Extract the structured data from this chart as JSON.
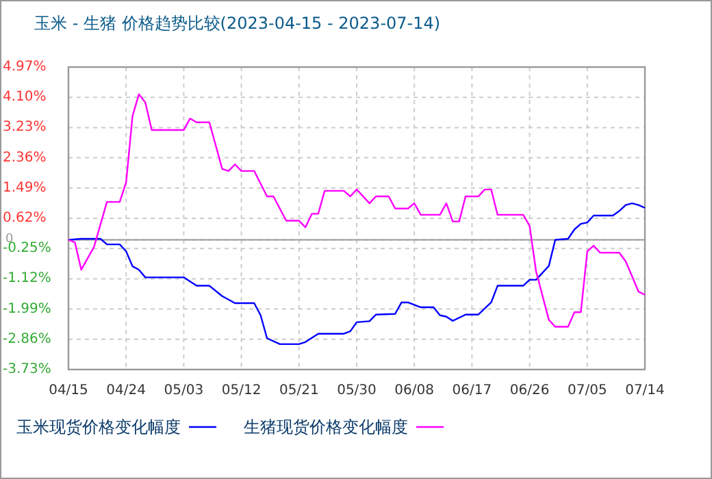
{
  "chart_data": {
    "type": "line",
    "title": "玉米 - 生猪 价格趋势比较(2023-04-15 - 2023-07-14)",
    "xlim": [
      "2023-04-15",
      "2023-07-14"
    ],
    "xticks": [
      {
        "value": "2023-04-15",
        "label": "04/15"
      },
      {
        "value": "2023-04-24",
        "label": "04/24"
      },
      {
        "value": "2023-05-03",
        "label": "05/03"
      },
      {
        "value": "2023-05-12",
        "label": "05/12"
      },
      {
        "value": "2023-05-21",
        "label": "05/21"
      },
      {
        "value": "2023-05-30",
        "label": "05/30"
      },
      {
        "value": "2023-06-08",
        "label": "06/08"
      },
      {
        "value": "2023-06-17",
        "label": "06/17"
      },
      {
        "value": "2023-06-26",
        "label": "06/26"
      },
      {
        "value": "2023-07-05",
        "label": "07/05"
      },
      {
        "value": "2023-07-14",
        "label": "07/14"
      }
    ],
    "ylim": [
      -3.73,
      4.97
    ],
    "yticks": [
      {
        "value": 4.97,
        "label": "4.97%"
      },
      {
        "value": 4.1,
        "label": "4.10%"
      },
      {
        "value": 3.23,
        "label": "3.23%"
      },
      {
        "value": 2.36,
        "label": "2.36%"
      },
      {
        "value": 1.49,
        "label": "1.49%"
      },
      {
        "value": 0.62,
        "label": "0.62%"
      },
      0,
      {
        "value": -0.25,
        "label": "-0.25%"
      },
      {
        "value": -1.12,
        "label": "-1.12%"
      },
      {
        "value": -1.99,
        "label": "-1.99%"
      },
      {
        "value": -2.86,
        "label": "-2.86%"
      },
      {
        "value": -3.73,
        "label": "-3.73%"
      }
    ],
    "grid": true,
    "legend": "bottom",
    "marker": "none",
    "line_style": "solid",
    "ref_lines": [
      {
        "axis": "y",
        "value": 0,
        "color": "#999999"
      }
    ],
    "series": [
      {
        "name": "玉米现货价格变化幅度",
        "color": "#0000ff",
        "x": [
          "2023-04-15",
          "2023-04-17",
          "2023-04-20",
          "2023-04-21",
          "2023-04-23",
          "2023-04-24",
          "2023-04-25",
          "2023-04-26",
          "2023-04-27",
          "2023-05-03",
          "2023-05-05",
          "2023-05-07",
          "2023-05-09",
          "2023-05-11",
          "2023-05-14",
          "2023-05-15",
          "2023-05-16",
          "2023-05-18",
          "2023-05-21",
          "2023-05-22",
          "2023-05-24",
          "2023-05-28",
          "2023-05-29",
          "2023-05-30",
          "2023-06-01",
          "2023-06-02",
          "2023-06-05",
          "2023-06-06",
          "2023-06-07",
          "2023-06-09",
          "2023-06-11",
          "2023-06-12",
          "2023-06-13",
          "2023-06-14",
          "2023-06-16",
          "2023-06-18",
          "2023-06-20",
          "2023-06-21",
          "2023-06-25",
          "2023-06-26",
          "2023-06-27",
          "2023-06-29",
          "2023-06-30",
          "2023-07-02",
          "2023-07-03",
          "2023-07-04",
          "2023-07-05",
          "2023-07-06",
          "2023-07-09",
          "2023-07-10",
          "2023-07-11",
          "2023-07-12",
          "2023-07-13",
          "2023-07-14"
        ],
        "values": [
          0,
          0.03,
          0.03,
          -0.13,
          -0.13,
          -0.33,
          -0.76,
          -0.86,
          -1.08,
          -1.08,
          -1.32,
          -1.32,
          -1.62,
          -1.82,
          -1.82,
          -2.17,
          -2.83,
          -3.0,
          -3.0,
          -2.94,
          -2.7,
          -2.7,
          -2.63,
          -2.37,
          -2.34,
          -2.15,
          -2.13,
          -1.8,
          -1.8,
          -1.94,
          -1.94,
          -2.17,
          -2.21,
          -2.33,
          -2.15,
          -2.15,
          -1.8,
          -1.32,
          -1.32,
          -1.15,
          -1.15,
          -0.75,
          0,
          0.03,
          0.3,
          0.46,
          0.5,
          0.7,
          0.7,
          0.83,
          1.0,
          1.05,
          1.0,
          0.92
        ]
      },
      {
        "name": "生猪现货价格变化幅度",
        "color": "#ff00ff",
        "x": [
          "2023-04-15",
          "2023-04-16",
          "2023-04-17",
          "2023-04-19",
          "2023-04-21",
          "2023-04-23",
          "2023-04-24",
          "2023-04-25",
          "2023-04-26",
          "2023-04-27",
          "2023-04-28",
          "2023-05-03",
          "2023-05-04",
          "2023-05-05",
          "2023-05-07",
          "2023-05-09",
          "2023-05-10",
          "2023-05-11",
          "2023-05-12",
          "2023-05-14",
          "2023-05-16",
          "2023-05-17",
          "2023-05-19",
          "2023-05-21",
          "2023-05-22",
          "2023-05-23",
          "2023-05-24",
          "2023-05-25",
          "2023-05-28",
          "2023-05-29",
          "2023-05-30",
          "2023-06-01",
          "2023-06-02",
          "2023-06-04",
          "2023-06-05",
          "2023-06-07",
          "2023-06-08",
          "2023-06-09",
          "2023-06-12",
          "2023-06-13",
          "2023-06-14",
          "2023-06-15",
          "2023-06-16",
          "2023-06-18",
          "2023-06-19",
          "2023-06-20",
          "2023-06-21",
          "2023-06-25",
          "2023-06-26",
          "2023-06-27",
          "2023-06-29",
          "2023-06-30",
          "2023-07-02",
          "2023-07-03",
          "2023-07-04",
          "2023-07-05",
          "2023-07-06",
          "2023-07-07",
          "2023-07-10",
          "2023-07-11",
          "2023-07-12",
          "2023-07-13",
          "2023-07-14"
        ],
        "values": [
          0,
          -0.07,
          -0.86,
          -0.2,
          1.09,
          1.09,
          1.65,
          3.56,
          4.19,
          3.95,
          3.16,
          3.16,
          3.49,
          3.38,
          3.38,
          2.04,
          1.98,
          2.17,
          1.98,
          1.98,
          1.25,
          1.25,
          0.55,
          0.55,
          0.36,
          0.75,
          0.75,
          1.41,
          1.41,
          1.25,
          1.45,
          1.05,
          1.25,
          1.25,
          0.9,
          0.9,
          1.05,
          0.72,
          0.72,
          1.05,
          0.53,
          0.53,
          1.25,
          1.25,
          1.45,
          1.45,
          0.72,
          0.72,
          0.4,
          -0.9,
          -2.3,
          -2.5,
          -2.5,
          -2.08,
          -2.08,
          -0.33,
          -0.17,
          -0.37,
          -0.37,
          -0.62,
          -1.05,
          -1.49,
          -1.58
        ]
      }
    ]
  }
}
